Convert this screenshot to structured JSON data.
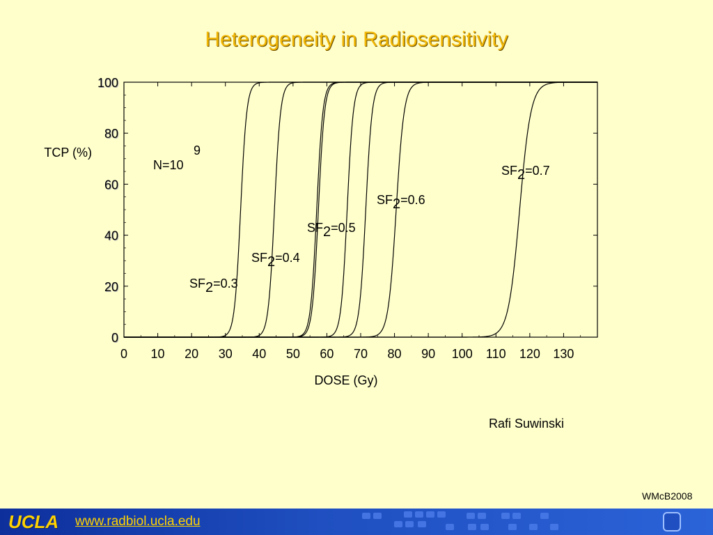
{
  "title": "Heterogeneity in Radiosensitivity",
  "credit": "Rafi Suwinski",
  "watermark": "WMcB2008",
  "footer": {
    "logo": "UCLA",
    "url": "www.radbiol.ucla.edu"
  },
  "colors": {
    "background": "#ffffcc",
    "title": "#f2b705",
    "footer": "#1f4fc0",
    "link": "#ffd200"
  },
  "chart_data": {
    "type": "line",
    "ylabel": "TCP (%)",
    "xlabel": "DOSE (Gy)",
    "xlim": [
      0,
      140
    ],
    "ylim": [
      0,
      100
    ],
    "xticks": [
      0,
      10,
      20,
      30,
      40,
      50,
      60,
      70,
      80,
      90,
      100,
      110,
      120,
      130
    ],
    "yticks": [
      0,
      20,
      40,
      60,
      80,
      100
    ],
    "annotation": {
      "text": "N=10",
      "superscript": "9"
    },
    "series": [
      {
        "label": {
          "base": "SF",
          "sub": "2",
          "rest": "=0.3"
        },
        "d50": 34.5,
        "slope": 1.1
      },
      {
        "label": {
          "base": "SF",
          "sub": "2",
          "rest": "=0.4"
        },
        "d50": 44.5,
        "slope": 1.1
      },
      {
        "d50": 57.0,
        "slope": 1.1
      },
      {
        "label": {
          "base": "SF",
          "sub": "2",
          "rest": "=0.5"
        },
        "d50": 57.5,
        "slope": 1.1
      },
      {
        "d50": 66.0,
        "slope": 1.1
      },
      {
        "label": {
          "base": "SF",
          "sub": "2",
          "rest": "=0.6"
        },
        "d50": 71.5,
        "slope": 1.05
      },
      {
        "d50": 80.5,
        "slope": 0.85
      },
      {
        "label": {
          "base": "SF",
          "sub": "2",
          "rest": "=0.7"
        },
        "d50": 117.0,
        "slope": 0.6
      }
    ]
  }
}
